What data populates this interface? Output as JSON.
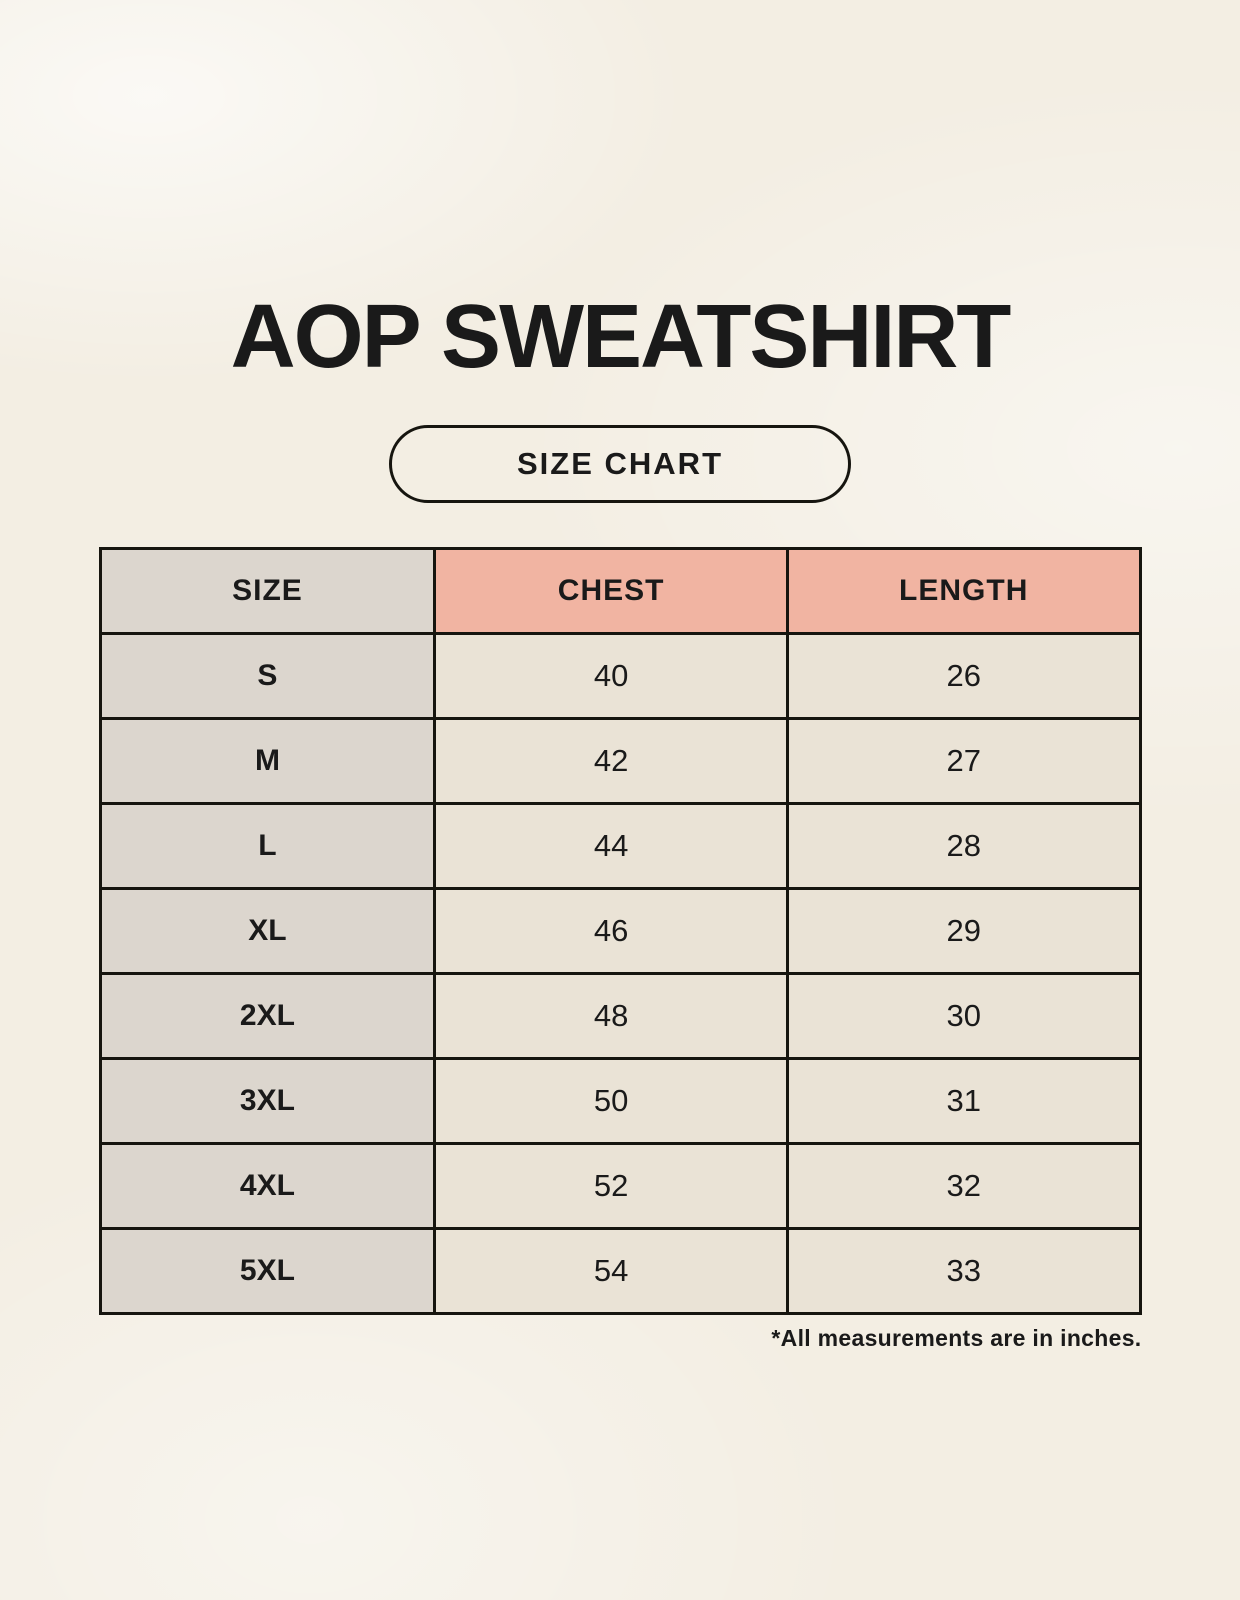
{
  "title": "AOP SWEATSHIRT",
  "size_chart_button_label": "SIZE CHART",
  "table": {
    "columns": [
      "SIZE",
      "CHEST",
      "LENGTH"
    ],
    "rows": [
      {
        "size": "S",
        "chest": "40",
        "length": "26"
      },
      {
        "size": "M",
        "chest": "42",
        "length": "27"
      },
      {
        "size": "L",
        "chest": "44",
        "length": "28"
      },
      {
        "size": "XL",
        "chest": "46",
        "length": "29"
      },
      {
        "size": "2XL",
        "chest": "48",
        "length": "30"
      },
      {
        "size": "3XL",
        "chest": "50",
        "length": "31"
      },
      {
        "size": "4XL",
        "chest": "52",
        "length": "32"
      },
      {
        "size": "5XL",
        "chest": "54",
        "length": "33"
      }
    ]
  },
  "footnote": "*All measurements are in inches.",
  "colors": {
    "background": "#f3eee3",
    "header_accent_pink": "#f1b4a2",
    "size_column_gray": "#dcd6ce",
    "data_cell_beige": "#eae3d6",
    "border_black": "#16150f",
    "text": "#1a1a1a"
  },
  "chart_data": {
    "type": "table",
    "title": "AOP SWEATSHIRT",
    "subtitle": "SIZE CHART",
    "columns": [
      "SIZE",
      "CHEST",
      "LENGTH"
    ],
    "rows": [
      [
        "S",
        40,
        26
      ],
      [
        "M",
        42,
        27
      ],
      [
        "L",
        44,
        28
      ],
      [
        "XL",
        46,
        29
      ],
      [
        "2XL",
        48,
        30
      ],
      [
        "3XL",
        50,
        31
      ],
      [
        "4XL",
        52,
        32
      ],
      [
        "5XL",
        54,
        33
      ]
    ],
    "units": "inches",
    "annotations": [
      "*All measurements are in inches."
    ]
  }
}
